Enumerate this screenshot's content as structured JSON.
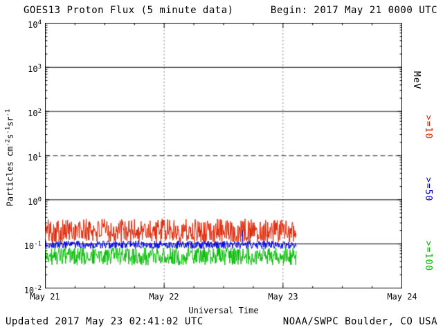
{
  "header": {
    "title": "GOES13 Proton Flux (5 minute data)",
    "begin_label": "Begin: 2017 May 21 0000 UTC"
  },
  "footer": {
    "updated": "Updated 2017 May 23 02:41:02 UTC",
    "source": "NOAA/SWPC Boulder, CO USA"
  },
  "chart_data": {
    "type": "line",
    "title": "GOES13 Proton Flux (5 minute data)",
    "subtitle": "Begin: 2017 May 21 0000 UTC",
    "xlabel": "Universal Time",
    "ylabel_parts": [
      {
        "t": "Particles cm"
      },
      {
        "s": "-2"
      },
      {
        "t": "s"
      },
      {
        "s": "-1"
      },
      {
        "t": "sr"
      },
      {
        "s": "-1"
      }
    ],
    "x_axis": {
      "min_day": 0,
      "max_day": 3,
      "start_date": "2017 May 21 0000 UTC"
    },
    "y_axis": {
      "scale": "log",
      "log_min": -2,
      "log_max": 4
    },
    "grid": "decade horizontal lines, dotted verticals at day boundaries",
    "x_ticks": [
      {
        "label": "May 21",
        "day": 0
      },
      {
        "label": "May 22",
        "day": 1
      },
      {
        "label": "May 23",
        "day": 2
      },
      {
        "label": "May 24",
        "day": 3
      }
    ],
    "y_ticks": [
      {
        "base": "10",
        "exp": "4",
        "log": 4
      },
      {
        "base": "10",
        "exp": "3",
        "log": 3
      },
      {
        "base": "10",
        "exp": "2",
        "log": 2
      },
      {
        "base": "10",
        "exp": "1",
        "log": 1
      },
      {
        "base": "10",
        "exp": "0",
        "log": 0
      },
      {
        "base": "10",
        "exp": "-1",
        "log": -1
      },
      {
        "base": "10",
        "exp": "-2",
        "log": -2
      }
    ],
    "hlines": [
      {
        "log": 3,
        "style": "solid"
      },
      {
        "log": 2,
        "style": "solid"
      },
      {
        "log": 1,
        "style": "dashed"
      },
      {
        "log": 0,
        "style": "solid"
      },
      {
        "log": -1,
        "style": "solid"
      }
    ],
    "vlines": [
      {
        "day": 1,
        "style": "dotted"
      },
      {
        "day": 2,
        "style": "dotted"
      }
    ],
    "legend": {
      "unit": "MeV",
      "position": "right-rotated",
      "entries": [
        {
          "label": ">=10",
          "color": "#dd2200"
        },
        {
          "label": ">=50",
          "color": "#0000dd"
        },
        {
          "label": ">=100",
          "color": "#00bb00"
        }
      ]
    },
    "series": [
      {
        "name": "Protons >=10 MeV",
        "color": "#dd2200",
        "cadence_minutes": 5,
        "start_day": 0,
        "end_day": 2.11,
        "flux_typical": 0.2,
        "flux_min": 0.1,
        "flux_max": 0.45,
        "log_mean": -0.7,
        "log_jitter": 0.27,
        "seed": 101,
        "spikes": []
      },
      {
        "name": "Protons >=50 MeV",
        "color": "#0000dd",
        "cadence_minutes": 5,
        "start_day": 0,
        "end_day": 2.11,
        "flux_typical": 0.1,
        "flux_min": 0.078,
        "flux_max": 0.2,
        "log_mean": -1.02,
        "log_jitter": 0.09,
        "seed": 202,
        "spikes": [
          {
            "day": 1.66,
            "flux": 0.2
          }
        ]
      },
      {
        "name": "Protons >=100 MeV",
        "color": "#00bb00",
        "cadence_minutes": 5,
        "start_day": 0,
        "end_day": 2.11,
        "flux_typical": 0.05,
        "flux_min": 0.033,
        "flux_max": 0.1,
        "log_mean": -1.28,
        "log_jitter": 0.2,
        "seed": 303,
        "spikes": []
      }
    ]
  }
}
